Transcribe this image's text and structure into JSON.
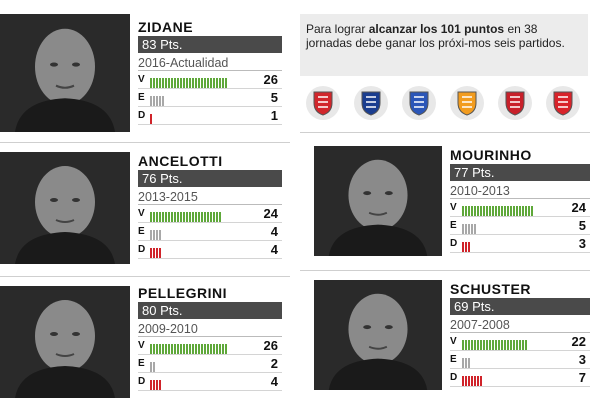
{
  "info": {
    "text_1": "Para lograr ",
    "bold": "alcanzar los 101 puntos",
    "text_2": "en 38 jornadas debe ganar los próxi-mos seis partidos."
  },
  "shields": [
    {
      "name": "sporting-gijon-crest-icon",
      "color": "#d1262b"
    },
    {
      "name": "fc-barcelona-crest-icon",
      "color": "#1a3d8f"
    },
    {
      "name": "deportivo-coruna-crest-icon",
      "color": "#2b56b8"
    },
    {
      "name": "valencia-crest-icon",
      "color": "#f29c1f"
    },
    {
      "name": "granada-crest-icon",
      "color": "#c8202a"
    },
    {
      "name": "sevilla-crest-icon",
      "color": "#d8232a"
    }
  ],
  "colors": {
    "win": "#5fa83a",
    "draw": "#a8a8a8",
    "loss": "#d0232a",
    "pts_bg": "#4a4a4a"
  },
  "labels": {
    "win": "V",
    "draw": "E",
    "loss": "D"
  },
  "coaches": [
    {
      "id": "zidane",
      "name": "ZIDANE",
      "points": "83 Pts.",
      "period": "2016-Actualidad",
      "wins": 26,
      "draws": 5,
      "losses": 1,
      "wins_label": "26",
      "draws_label": "5",
      "losses_label": "1"
    },
    {
      "id": "ancelotti",
      "name": "ANCELOTTI",
      "points": "76 Pts.",
      "period": "2013-2015",
      "wins": 24,
      "draws": 4,
      "losses": 4,
      "wins_label": "24",
      "draws_label": "4",
      "losses_label": "4"
    },
    {
      "id": "mourinho",
      "name": "MOURINHO",
      "points": "77 Pts.",
      "period": "2010-2013",
      "wins": 24,
      "draws": 5,
      "losses": 3,
      "wins_label": "24",
      "draws_label": "5",
      "losses_label": "3"
    },
    {
      "id": "pellegrini",
      "name": "PELLEGRINI",
      "points": "80 Pts.",
      "period": "2009-2010",
      "wins": 26,
      "draws": 2,
      "losses": 4,
      "wins_label": "26",
      "draws_label": "2",
      "losses_label": "4"
    },
    {
      "id": "schuster",
      "name": "SCHUSTER",
      "points": "69 Pts.",
      "period": "2007-2008",
      "wins": 22,
      "draws": 3,
      "losses": 7,
      "wins_label": "22",
      "draws_label": "3",
      "losses_label": "7"
    }
  ]
}
